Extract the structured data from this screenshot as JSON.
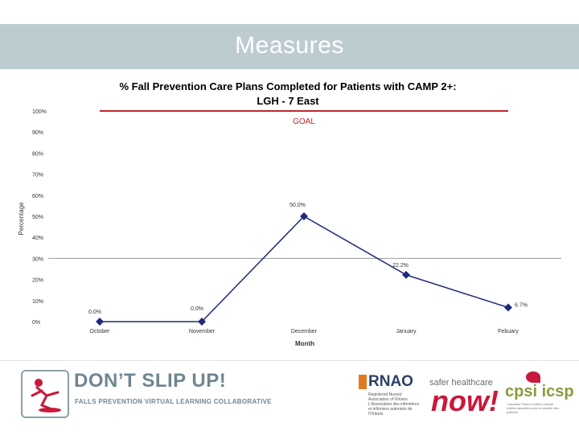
{
  "slide": {
    "title": "Measures"
  },
  "chart_data": {
    "type": "line",
    "title": "% Fall Prevention Care Plans Completed for Patients with CAMP 2+:",
    "subtitle": "LGH - 7 East",
    "xlabel": "Month",
    "ylabel": "Percentage",
    "categories": [
      "October",
      "November",
      "December",
      "January",
      "Febuary"
    ],
    "series": [
      {
        "values": [
          0.0,
          0.0,
          50.0,
          22.2,
          6.7
        ],
        "labels": [
          "0.0%",
          "0.0%",
          "50.0%",
          "22.2%",
          "6.7%"
        ],
        "color": "#1f2a7a"
      }
    ],
    "yticks": [
      "0%",
      "10%",
      "20%",
      "30%",
      "40%",
      "50%",
      "60%",
      "70%",
      "80%",
      "90%",
      "100%"
    ],
    "ylim": [
      0,
      100
    ],
    "goal": {
      "value": 100,
      "label": "GOAL",
      "color": "#c0282d"
    },
    "reference_line": {
      "value": 30,
      "color": "#999999"
    },
    "grid": false,
    "legend": "none"
  },
  "footer": {
    "main": "DON’T SLIP UP!",
    "sub": "FALLS PREVENTION VIRTUAL LEARNING COLLABORATIVE",
    "rnao": "RNAO",
    "rnao_text": "Registered Nurses' Association of Ontario L'Association des infirmières et infirmiers autorisés de l'Ontario",
    "safer_top": "safer healthcare",
    "safer_now": "now!",
    "cpsi": "cpsi icsp",
    "cpsi_text": "Canadian Patient Safety Institute Institut canadien pour la sécurité des patients"
  }
}
